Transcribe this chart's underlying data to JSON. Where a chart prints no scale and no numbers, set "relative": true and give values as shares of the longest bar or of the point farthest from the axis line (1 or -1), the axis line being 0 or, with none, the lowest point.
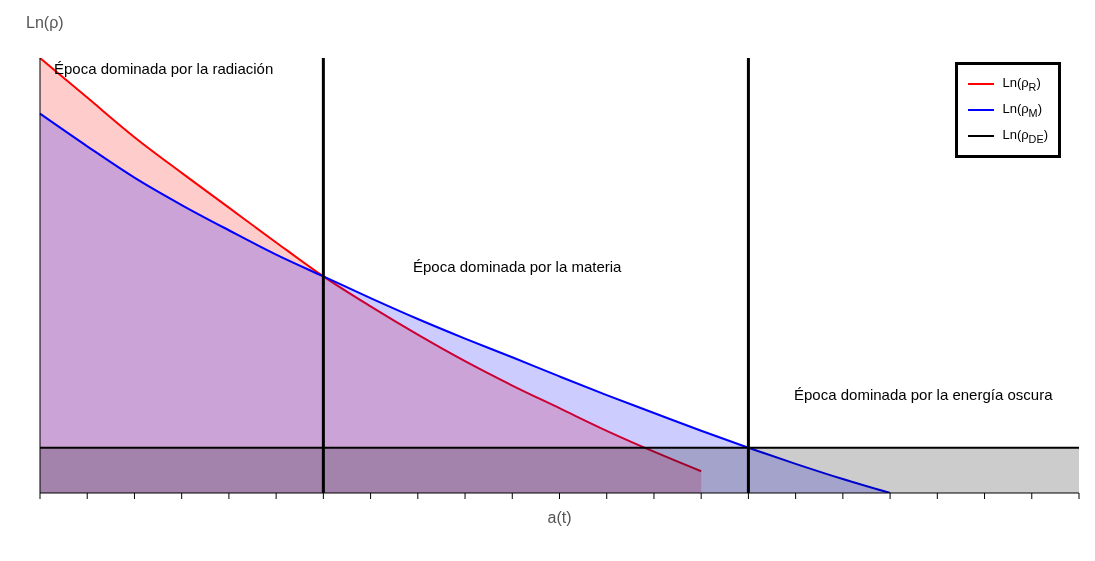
{
  "chart_data": {
    "type": "area",
    "relative": true,
    "xlabel": "a(t)",
    "ylabel": "Ln(ρ)",
    "categories": [
      null,
      null,
      null,
      null,
      null,
      null,
      null,
      null,
      null,
      null,
      null,
      null,
      null,
      null,
      null,
      null,
      null,
      null,
      null,
      null,
      null,
      null,
      null
    ],
    "series": [
      {
        "name": "Ln(ρ$_{R}$)",
        "color": "#ff0000",
        "values": [
          1,
          0.909,
          0.818,
          0.736,
          0.656,
          0.576,
          0.498,
          0.429,
          0.364,
          0.303,
          0.247,
          0.195,
          0.143,
          0.095,
          0.05,
          null,
          null,
          null,
          null,
          null,
          null,
          null,
          null
        ]
      },
      {
        "name": "Ln(ρ$_{M}$)",
        "color": "#0000ff",
        "values": [
          0.872,
          0.797,
          0.725,
          0.662,
          0.604,
          0.548,
          0.498,
          0.448,
          0.4,
          0.355,
          0.312,
          0.268,
          0.225,
          0.184,
          0.143,
          0.104,
          0.067,
          0.032,
          0,
          null,
          null,
          null,
          null
        ]
      },
      {
        "name": "Ln(ρ$_{DE}$)",
        "color": "#000000",
        "values": [
          0.104,
          0.104,
          0.104,
          0.104,
          0.104,
          0.104,
          0.104,
          0.104,
          0.104,
          0.104,
          0.104,
          0.104,
          0.104,
          0.104,
          0.104,
          0.104,
          0.104,
          0.104,
          0.104,
          0.104,
          0.104,
          0.104,
          0.104
        ]
      }
    ],
    "annotations": [
      "Época dominada por la radiación",
      "Época dominada por la materia",
      "Época dominada por la energía oscura"
    ],
    "legend": "top right"
  }
}
